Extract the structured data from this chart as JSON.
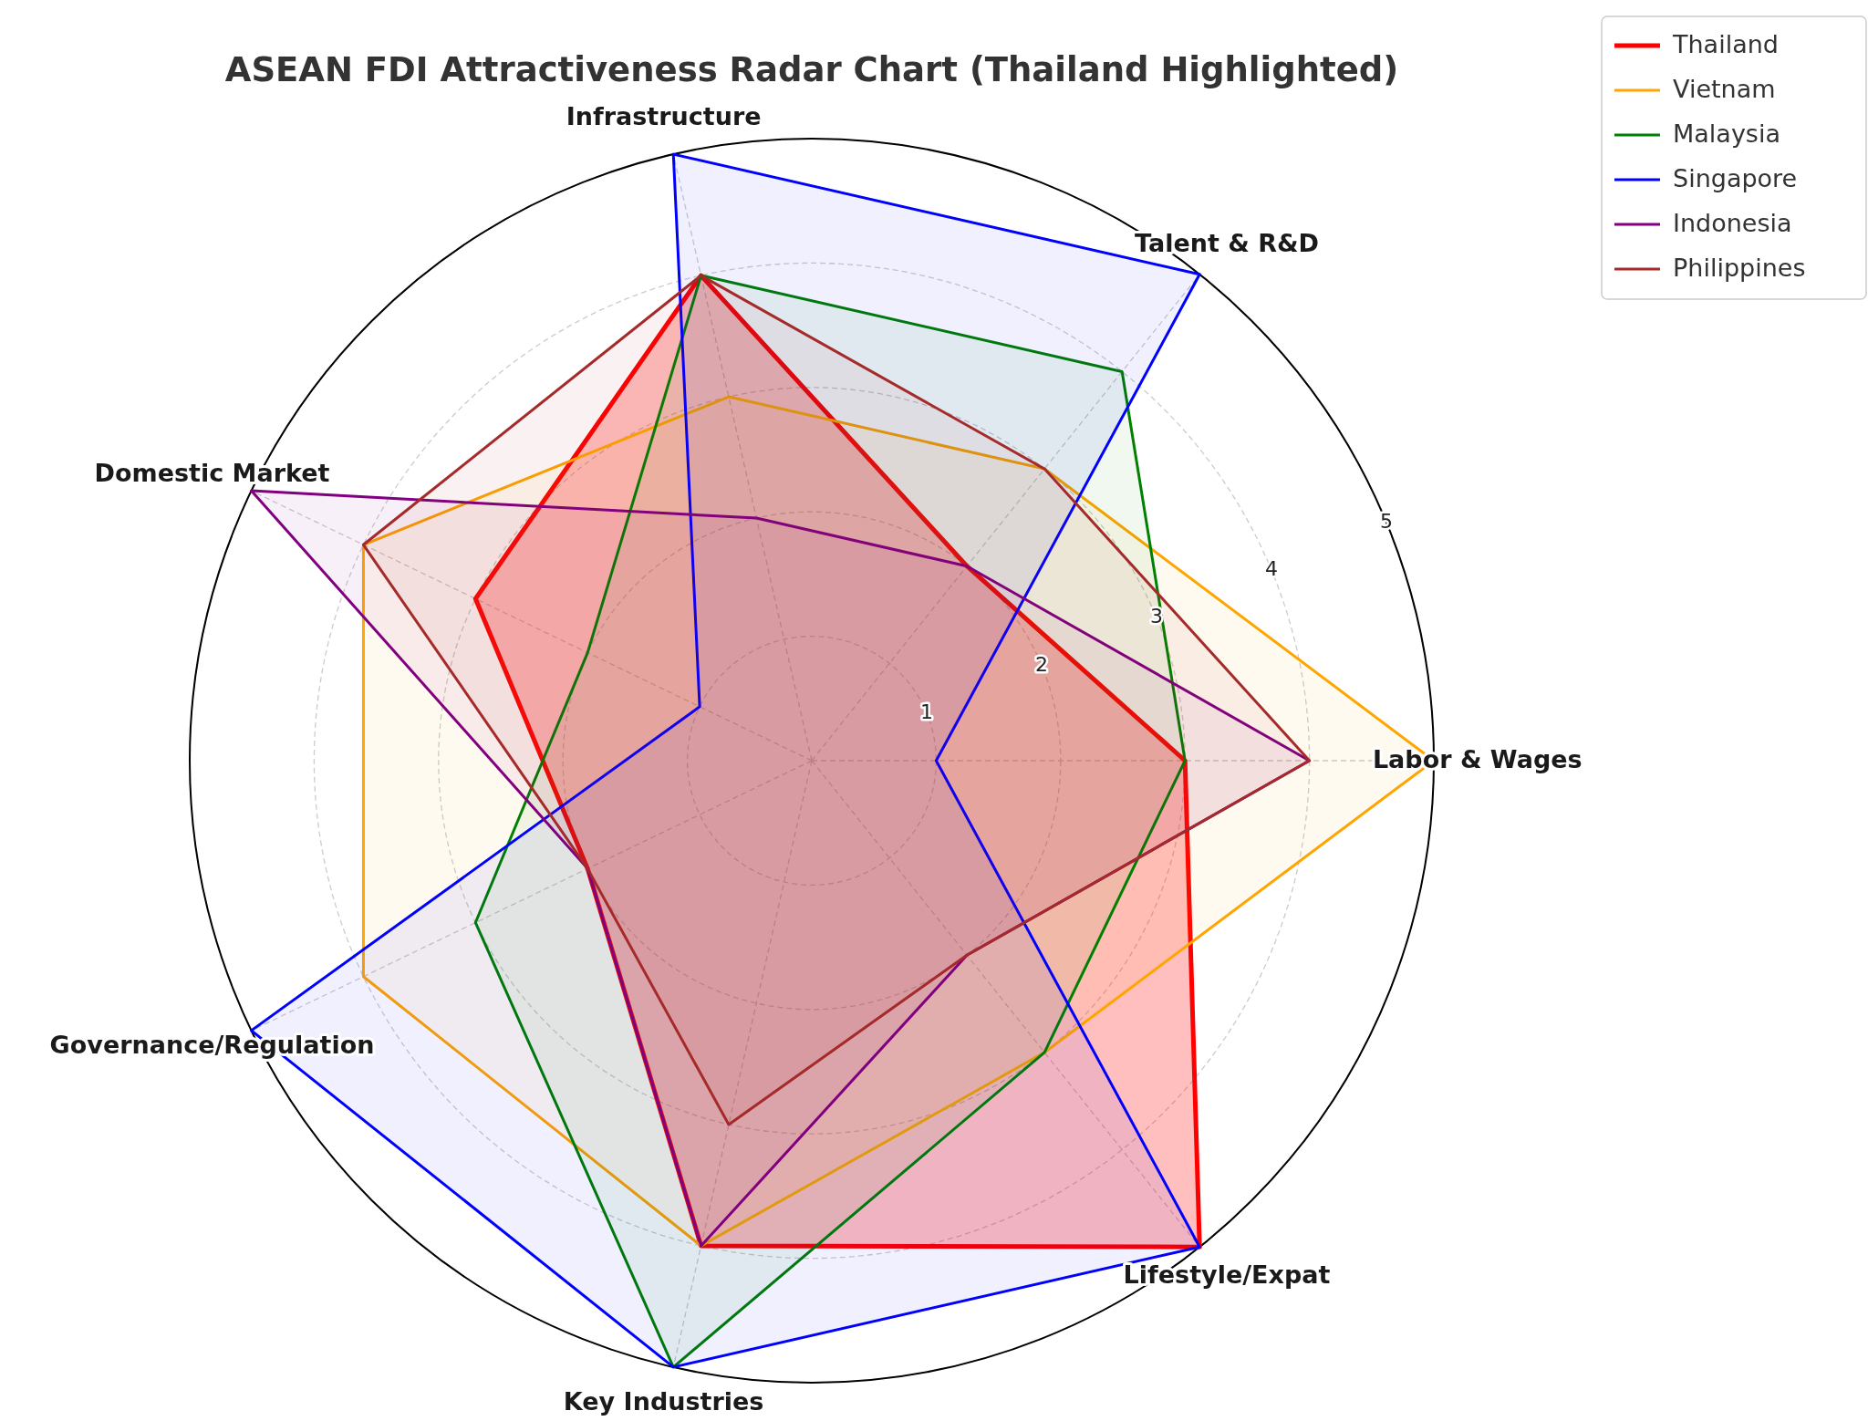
{
  "chart_data": {
    "type": "radar",
    "title": "ASEAN FDI Attractiveness Radar Chart (Thailand Highlighted)",
    "categories": [
      "Infrastructure",
      "Talent & R&D",
      "Labor & Wages",
      "Lifestyle/Expat",
      "Key Industries",
      "Governance/Regulation",
      "Domestic Market"
    ],
    "series": [
      {
        "name": "Thailand",
        "color": "#ff0000",
        "values": [
          4,
          2,
          3,
          5,
          4,
          2,
          3
        ]
      },
      {
        "name": "Vietnam",
        "color": "#ffa500",
        "values": [
          3,
          3,
          5,
          3,
          4,
          4,
          4
        ]
      },
      {
        "name": "Malaysia",
        "color": "#008000",
        "values": [
          4,
          4,
          3,
          3,
          5,
          3,
          2
        ]
      },
      {
        "name": "Singapore",
        "color": "#0000ff",
        "values": [
          5,
          5,
          1,
          5,
          5,
          5,
          1
        ]
      },
      {
        "name": "Indonesia",
        "color": "#800080",
        "values": [
          2,
          2,
          4,
          2,
          4,
          2,
          5
        ]
      },
      {
        "name": "Philippines",
        "color": "#a52a2a",
        "values": [
          4,
          3,
          4,
          2,
          3,
          2,
          4
        ]
      }
    ],
    "ylim": [
      0,
      5
    ],
    "yticks": [
      1,
      2,
      3,
      4,
      5
    ],
    "grid": true,
    "legend": "top right"
  }
}
